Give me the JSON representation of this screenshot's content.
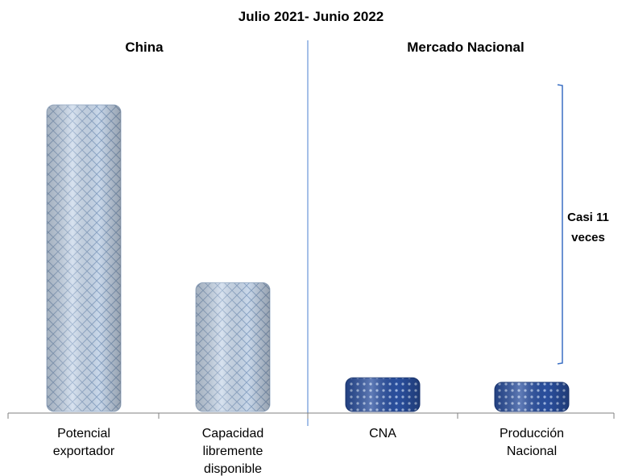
{
  "chart_data": {
    "type": "bar",
    "title": "Julio 2021- Junio 2022",
    "groups": [
      {
        "name": "China",
        "categories": [
          0,
          1
        ]
      },
      {
        "name": "Mercado Nacional",
        "categories": [
          2,
          3
        ]
      }
    ],
    "categories": [
      {
        "lines": [
          "Potencial",
          "exportador"
        ]
      },
      {
        "lines": [
          "Capacidad",
          "libremente",
          "disponible"
        ]
      },
      {
        "lines": [
          "CNA"
        ]
      },
      {
        "lines": [
          "Producción",
          "Nacional"
        ]
      }
    ],
    "values": [
      100,
      42,
      11,
      9.5
    ],
    "ylim": [
      0,
      100
    ],
    "grid": false,
    "legend": "none",
    "annotation": {
      "lines": [
        "Casi 11",
        "veces"
      ]
    },
    "colors": {
      "china_fill": "#c9d8ea",
      "china_pattern": "#8fa8c8",
      "nacional_fill": "#2a4f9e",
      "nacional_pattern": "#9fb6e0",
      "divider": "#4a7fd0",
      "axis": "#808080",
      "bracket": "#3a6fc4"
    }
  }
}
